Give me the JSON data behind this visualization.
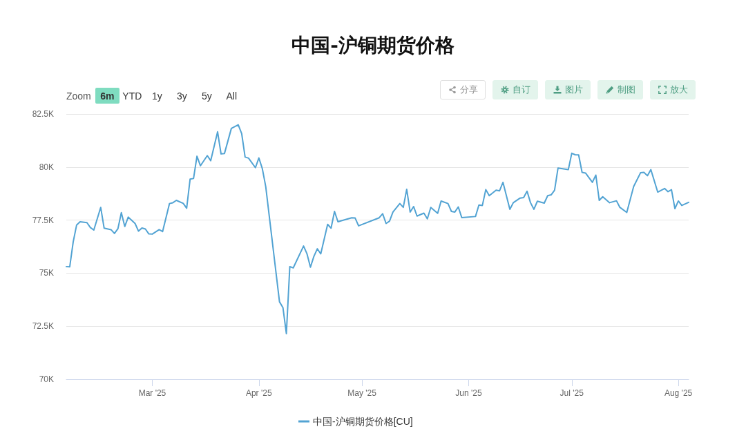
{
  "chart_data": {
    "type": "line",
    "title": "中国-沪铜期货价格",
    "annotations": [
      "Zoom",
      "6m",
      "YTD",
      "1y",
      "3y",
      "5y",
      "All",
      "分享",
      "自订",
      "图片",
      "制图",
      "放大"
    ],
    "x": [
      "2025-02-04",
      "2025-02-05",
      "2025-02-06",
      "2025-02-07",
      "2025-02-08",
      "2025-02-10",
      "2025-02-11",
      "2025-02-12",
      "2025-02-14",
      "2025-02-15",
      "2025-02-17",
      "2025-02-18",
      "2025-02-19",
      "2025-02-20",
      "2025-02-21",
      "2025-02-22",
      "2025-02-24",
      "2025-02-25",
      "2025-02-26",
      "2025-02-27",
      "2025-02-28",
      "2025-03-01",
      "2025-03-03",
      "2025-03-04",
      "2025-03-06",
      "2025-03-07",
      "2025-03-08",
      "2025-03-10",
      "2025-03-11",
      "2025-03-12",
      "2025-03-13",
      "2025-03-14",
      "2025-03-15",
      "2025-03-17",
      "2025-03-18",
      "2025-03-20",
      "2025-03-21",
      "2025-03-22",
      "2025-03-24",
      "2025-03-26",
      "2025-03-27",
      "2025-03-28",
      "2025-03-29",
      "2025-03-31",
      "2025-04-01",
      "2025-04-02",
      "2025-04-03",
      "2025-04-07",
      "2025-04-08",
      "2025-04-09",
      "2025-04-10",
      "2025-04-11",
      "2025-04-14",
      "2025-04-15",
      "2025-04-16",
      "2025-04-17",
      "2025-04-18",
      "2025-04-19",
      "2025-04-21",
      "2025-04-22",
      "2025-04-23",
      "2025-04-24",
      "2025-04-25",
      "2025-04-28",
      "2025-04-29",
      "2025-04-30",
      "2025-05-06",
      "2025-05-07",
      "2025-05-08",
      "2025-05-09",
      "2025-05-10",
      "2025-05-12",
      "2025-05-13",
      "2025-05-14",
      "2025-05-15",
      "2025-05-16",
      "2025-05-17",
      "2025-05-19",
      "2025-05-20",
      "2025-05-21",
      "2025-05-23",
      "2025-05-24",
      "2025-05-26",
      "2025-05-27",
      "2025-05-28",
      "2025-05-29",
      "2025-05-30",
      "2025-06-03",
      "2025-06-04",
      "2025-06-05",
      "2025-06-06",
      "2025-06-07",
      "2025-06-09",
      "2025-06-10",
      "2025-06-11",
      "2025-06-13",
      "2025-06-14",
      "2025-06-16",
      "2025-06-17",
      "2025-06-18",
      "2025-06-19",
      "2025-06-20",
      "2025-06-21",
      "2025-06-23",
      "2025-06-24",
      "2025-06-25",
      "2025-06-26",
      "2025-06-27",
      "2025-06-30",
      "2025-07-01",
      "2025-07-02",
      "2025-07-03",
      "2025-07-04",
      "2025-07-05",
      "2025-07-07",
      "2025-07-08",
      "2025-07-09",
      "2025-07-10",
      "2025-07-12",
      "2025-07-14",
      "2025-07-15",
      "2025-07-17",
      "2025-07-19",
      "2025-07-21",
      "2025-07-22",
      "2025-07-23",
      "2025-07-24",
      "2025-07-26",
      "2025-07-28",
      "2025-07-29",
      "2025-07-30",
      "2025-07-31",
      "2025-08-01",
      "2025-08-02",
      "2025-08-04"
    ],
    "series": [
      {
        "name": "中国-沪铜期货价格[CU]",
        "color": "#52a3d3",
        "values": [
          75310,
          75300,
          76470,
          77270,
          77420,
          77380,
          77150,
          77030,
          78100,
          77120,
          77050,
          76870,
          77090,
          77850,
          77200,
          77640,
          77340,
          76980,
          77130,
          77080,
          76850,
          76840,
          77050,
          76960,
          78280,
          78320,
          78430,
          78290,
          78060,
          79430,
          79460,
          80510,
          80060,
          80540,
          80300,
          81660,
          80620,
          80640,
          81820,
          81990,
          81580,
          80470,
          80420,
          79970,
          80430,
          79930,
          79080,
          73650,
          73380,
          72150,
          75310,
          75250,
          76280,
          75910,
          75280,
          75790,
          76150,
          75910,
          77300,
          77120,
          77910,
          77420,
          77470,
          77610,
          77600,
          77230,
          77610,
          77800,
          77340,
          77450,
          77880,
          78280,
          78100,
          78950,
          77880,
          78140,
          77690,
          77830,
          77560,
          78100,
          77820,
          78400,
          78280,
          77910,
          77880,
          78120,
          77620,
          77670,
          78210,
          78190,
          78940,
          78650,
          78910,
          78880,
          79280,
          78010,
          78320,
          78540,
          78560,
          78860,
          78320,
          78010,
          78390,
          78300,
          78650,
          78690,
          78910,
          79950,
          79880,
          80650,
          80580,
          80570,
          79750,
          79720,
          79280,
          79620,
          78430,
          78600,
          78320,
          78410,
          78100,
          77860,
          79080,
          79730,
          79750,
          79590,
          79880,
          78820,
          78990,
          78840,
          78930,
          78040,
          78400,
          78190,
          78340
        ]
      }
    ],
    "xlim": [
      "2025-02-04",
      "2025-08-04"
    ],
    "xticks": [
      {
        "value": "2025-03-01",
        "label": "Mar '25"
      },
      {
        "value": "2025-04-01",
        "label": "Apr '25"
      },
      {
        "value": "2025-05-01",
        "label": "May '25"
      },
      {
        "value": "2025-06-01",
        "label": "Jun '25"
      },
      {
        "value": "2025-07-01",
        "label": "Jul '25"
      },
      {
        "value": "2025-08-01",
        "label": "Aug '25"
      }
    ],
    "ylim": [
      70000,
      82500
    ],
    "yticks": [
      {
        "value": 70000,
        "label": "70K"
      },
      {
        "value": 72500,
        "label": "72.5K"
      },
      {
        "value": 75000,
        "label": "75K"
      },
      {
        "value": 77500,
        "label": "77.5K"
      },
      {
        "value": 80000,
        "label": "80K"
      },
      {
        "value": 82500,
        "label": "82.5K"
      }
    ],
    "grid": "y",
    "legend": "bottom"
  }
}
